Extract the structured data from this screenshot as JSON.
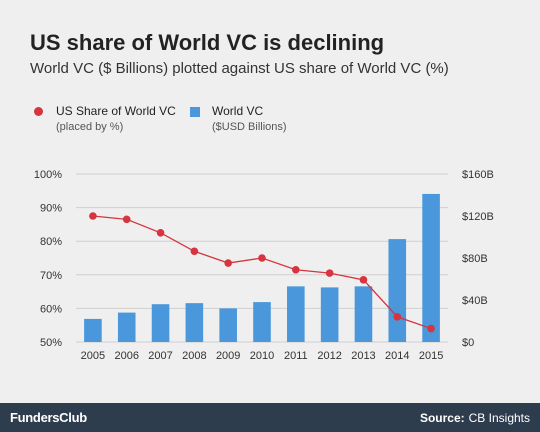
{
  "header": {
    "title": "US share of World VC is declining",
    "subtitle": "World VC ($ Billions) plotted against US share of World VC (%)"
  },
  "legend": [
    {
      "label": "US Share of World VC",
      "sub": "(placed by %)"
    },
    {
      "label": "World VC",
      "sub": "($USD Billions)"
    }
  ],
  "colors": {
    "line": "#d6343f",
    "bar": "#4a97db",
    "grid": "#cfcfcf",
    "footer": "#2e3d4d"
  },
  "footer": {
    "brand": "FundersClub",
    "source_label": "Source:",
    "source_value": "CB Insights"
  },
  "chart_data": {
    "type": "bar",
    "categories": [
      "2005",
      "2006",
      "2007",
      "2008",
      "2009",
      "2010",
      "2011",
      "2012",
      "2013",
      "2014",
      "2015"
    ],
    "series": [
      {
        "name": "World VC",
        "type": "bar",
        "axis": "right",
        "values": [
          22,
          28,
          36,
          37,
          32,
          38,
          53,
          52,
          53,
          98,
          141
        ]
      },
      {
        "name": "US Share of World VC",
        "type": "line",
        "axis": "left",
        "values": [
          87.5,
          86.5,
          82.5,
          77,
          73.5,
          75,
          71.5,
          70.5,
          68.5,
          57.5,
          54
        ]
      }
    ],
    "ylim_left": [
      50,
      100
    ],
    "yticks_left": [
      "50%",
      "60%",
      "70%",
      "80%",
      "90%",
      "100%"
    ],
    "ylim_right": [
      0,
      160
    ],
    "yticks_right": [
      "$0",
      "$40B",
      "$80B",
      "$120B",
      "$160B"
    ],
    "grid": true
  }
}
